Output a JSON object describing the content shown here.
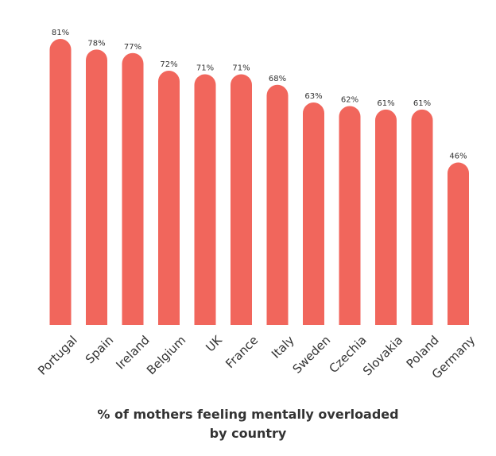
{
  "chart_data": {
    "type": "bar",
    "title": "% of mothers feeling mentally overloaded by country",
    "title_lines": [
      "% of mothers feeling mentally overloaded",
      "by country"
    ],
    "categories": [
      "Portugal",
      "Spain",
      "Ireland",
      "Belgium",
      "UK",
      "France",
      "Italy",
      "Sweden",
      "Czechia",
      "Slovakia",
      "Poland",
      "Germany"
    ],
    "values": [
      81,
      78,
      77,
      72,
      71,
      71,
      68,
      63,
      62,
      61,
      61,
      46
    ],
    "value_labels": [
      "81%",
      "78%",
      "77%",
      "72%",
      "71%",
      "71%",
      "68%",
      "63%",
      "62%",
      "61%",
      "61%",
      "46%"
    ],
    "ylim": [
      0,
      81
    ],
    "xlabel": "",
    "ylabel": "",
    "grid": false,
    "legend": "none",
    "bar_color": "#F1665C",
    "text_color": "#333333"
  }
}
